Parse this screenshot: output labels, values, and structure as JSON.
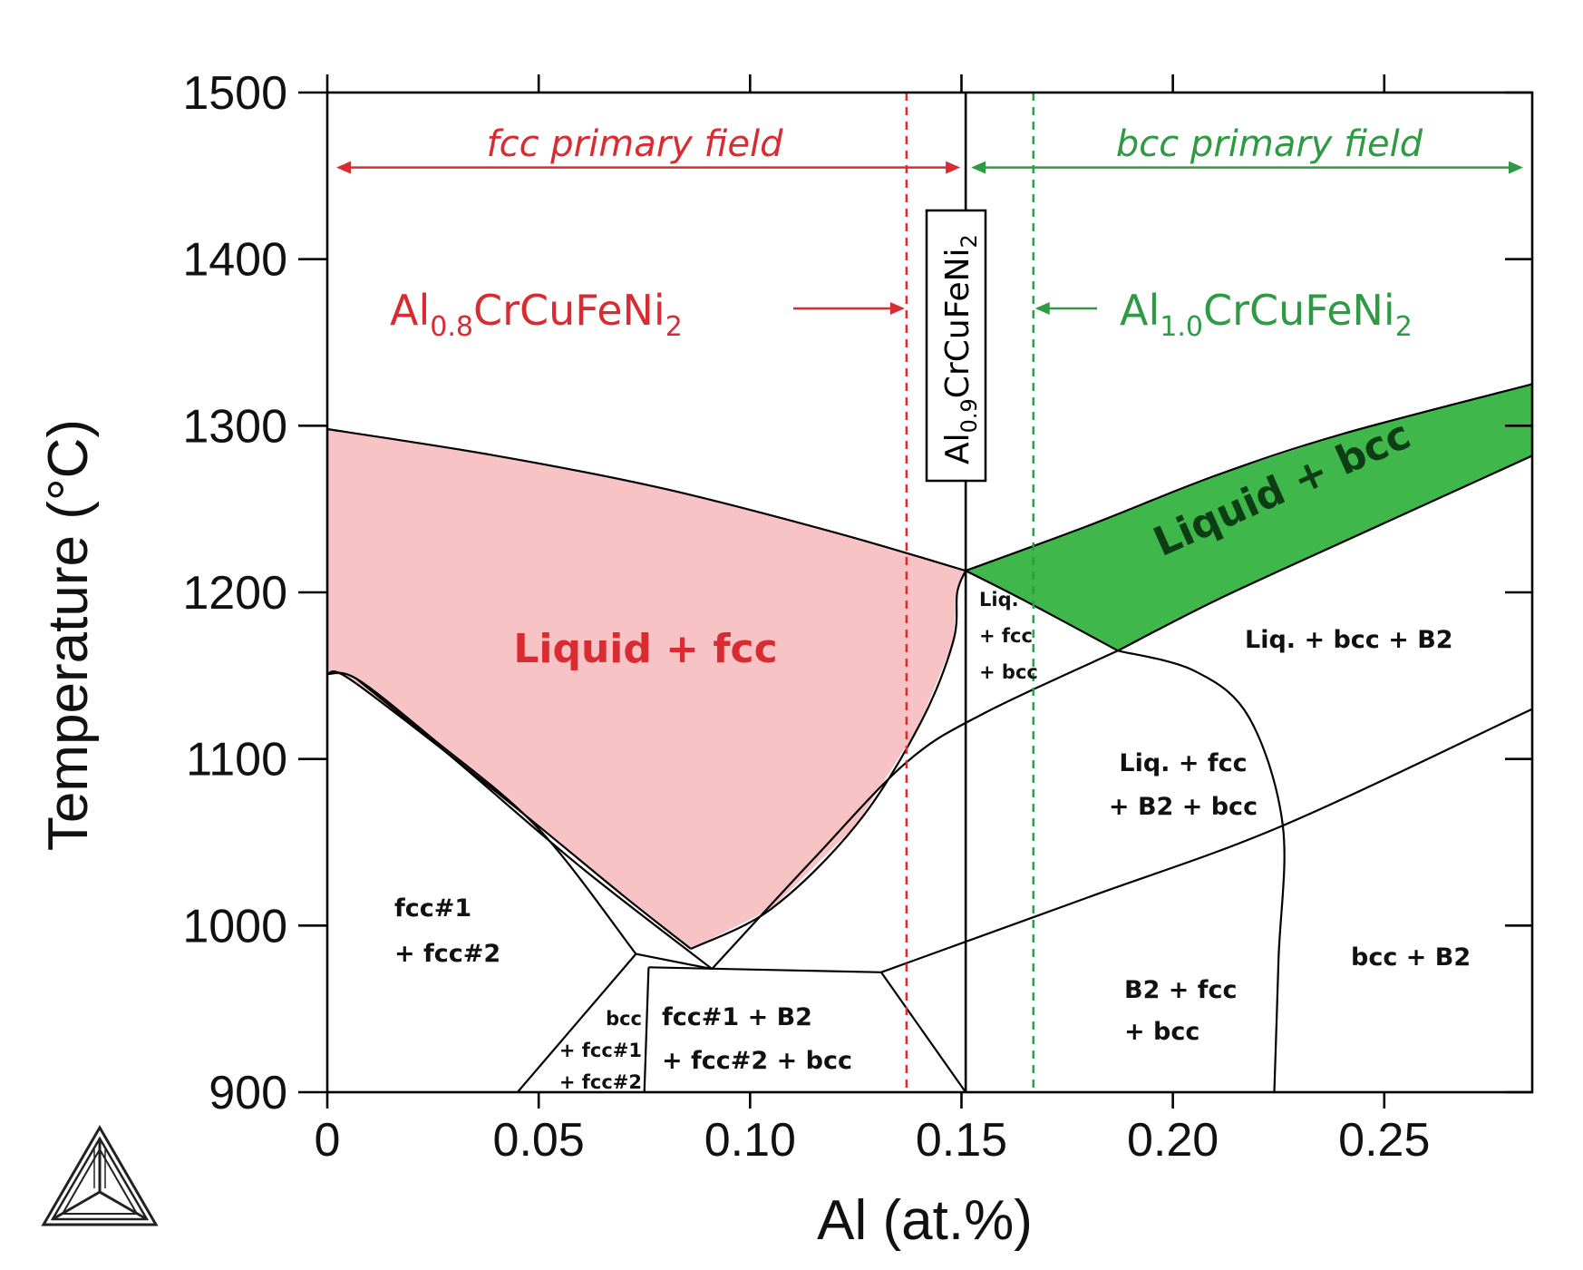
{
  "chart_data": {
    "type": "phase-diagram",
    "title": "",
    "xlabel": "Al (at.%)",
    "ylabel": "Temperature (°C)",
    "xlim": [
      0,
      0.285
    ],
    "ylim": [
      900,
      1500
    ],
    "x_ticks": [
      0,
      0.05,
      0.1,
      0.15,
      0.2,
      0.25
    ],
    "x_tick_labels": [
      "0",
      "0.05",
      "0.10",
      "0.15",
      "0.20",
      "0.25"
    ],
    "y_ticks": [
      900,
      1000,
      1100,
      1200,
      1300,
      1400,
      1500
    ],
    "y_tick_labels": [
      "900",
      "1000",
      "1100",
      "1200",
      "1300",
      "1400",
      "1500"
    ],
    "colors": {
      "liquid_fcc_fill": "#f8c3c5",
      "liquid_bcc_fill": "#3fb74a",
      "fcc_color": "#d92b32",
      "bcc_color": "#2f9a44"
    },
    "primary_fields": [
      {
        "label": "fcc primary field",
        "x_range": [
          0,
          0.151
        ],
        "temperature": 1455,
        "color": "#d92b32"
      },
      {
        "label": "bcc primary field",
        "x_range": [
          0.151,
          0.285
        ],
        "temperature": 1455,
        "color": "#2f9a44"
      }
    ],
    "compositions": [
      {
        "base": "Al",
        "sub1": "0.8",
        "mid": "CrCuFeNi",
        "sub2": "2",
        "x": 0.137,
        "line_style": "dashed",
        "color": "#d92b32"
      },
      {
        "base": "Al",
        "sub1": "0.9",
        "mid": "CrCuFeNi",
        "sub2": "2",
        "x": 0.151,
        "line_style": "solid",
        "color": "#000000"
      },
      {
        "base": "Al",
        "sub1": "1.0",
        "mid": "CrCuFeNi",
        "sub2": "2",
        "x": 0.167,
        "line_style": "dashed",
        "color": "#2f9a44"
      }
    ],
    "regions": [
      {
        "id": "liquid-fcc",
        "lines": [
          "Liquid + fcc"
        ]
      },
      {
        "id": "liquid-bcc",
        "lines": [
          "Liquid + bcc"
        ]
      },
      {
        "id": "liq-fcc-bcc",
        "lines": [
          "Liq.",
          "+ fcc",
          "+ bcc"
        ]
      },
      {
        "id": "liq-bcc-b2",
        "lines": [
          "Liq. + bcc + B2"
        ]
      },
      {
        "id": "liq-fcc-b2-bcc",
        "lines": [
          "Liq. + fcc",
          "+ B2 + bcc"
        ]
      },
      {
        "id": "fcc1-fcc2",
        "lines": [
          "fcc#1",
          "+ fcc#2"
        ]
      },
      {
        "id": "bcc-fcc1-fcc2",
        "lines": [
          "bcc",
          "+ fcc#1",
          "+ fcc#2"
        ]
      },
      {
        "id": "fcc1-b2-fcc2-bcc",
        "lines": [
          "fcc#1 + B2",
          "+ fcc#2 + bcc"
        ]
      },
      {
        "id": "b2-fcc-bcc",
        "lines": [
          "B2 + fcc",
          "+ bcc"
        ]
      },
      {
        "id": "bcc-b2",
        "lines": [
          "bcc + B2"
        ]
      }
    ],
    "boundaries": {
      "liquidus_fcc": [
        [
          0,
          1298
        ],
        [
          0.04,
          1282
        ],
        [
          0.08,
          1262
        ],
        [
          0.12,
          1236
        ],
        [
          0.151,
          1213
        ]
      ],
      "solidus_fcc_left": [
        [
          0,
          1151
        ],
        [
          0.004,
          1150
        ],
        [
          0.02,
          1120
        ],
        [
          0.045,
          1070
        ],
        [
          0.07,
          1018
        ],
        [
          0.086,
          986
        ]
      ],
      "solidus_fcc_right": [
        [
          0.086,
          986
        ],
        [
          0.105,
          1010
        ],
        [
          0.125,
          1060
        ],
        [
          0.14,
          1120
        ],
        [
          0.148,
          1170
        ],
        [
          0.149,
          1200
        ],
        [
          0.151,
          1213
        ]
      ],
      "fcc_miscibility_left": [
        [
          0,
          1151
        ],
        [
          0.007,
          1148
        ],
        [
          0.025,
          1112
        ],
        [
          0.05,
          1058
        ],
        [
          0.073,
          983
        ]
      ],
      "fcc_miscibility_right": [
        [
          0.007,
          1148
        ],
        [
          0.03,
          1100
        ],
        [
          0.06,
          1035
        ],
        [
          0.091,
          974
        ]
      ],
      "liq_fcc_b2_upper": [
        [
          0.091,
          974
        ],
        [
          0.115,
          1040
        ],
        [
          0.137,
          1098
        ],
        [
          0.155,
          1127
        ],
        [
          0.187,
          1165
        ]
      ],
      "liquidus_bcc_upper": [
        [
          0.151,
          1213
        ],
        [
          0.18,
          1240
        ],
        [
          0.21,
          1270
        ],
        [
          0.24,
          1295
        ],
        [
          0.285,
          1325
        ]
      ],
      "liquidus_bcc_lower": [
        [
          0.187,
          1165
        ],
        [
          0.21,
          1195
        ],
        [
          0.24,
          1230
        ],
        [
          0.285,
          1282
        ]
      ],
      "liq_bcc_lower_left": [
        [
          0.151,
          1213
        ],
        [
          0.165,
          1195
        ],
        [
          0.187,
          1165
        ]
      ],
      "b2_solvus": [
        [
          0.187,
          1165
        ],
        [
          0.205,
          1153
        ],
        [
          0.218,
          1125
        ],
        [
          0.226,
          1060
        ],
        [
          0.225,
          980
        ],
        [
          0.224,
          900
        ]
      ],
      "solidus_bcc_b2": [
        [
          0.131,
          972
        ],
        [
          0.18,
          1017
        ],
        [
          0.226,
          1060
        ],
        [
          0.285,
          1130
        ]
      ],
      "three_phase_low_top": [
        [
          0.076,
          975
        ],
        [
          0.131,
          972
        ]
      ],
      "left_small_top": [
        [
          0.073,
          983
        ],
        [
          0.091,
          974
        ]
      ],
      "left_small_left": [
        [
          0.073,
          983
        ],
        [
          0.045,
          900
        ]
      ],
      "left_small_right": [
        [
          0.076,
          975
        ],
        [
          0.075,
          900
        ]
      ],
      "lower_right_edge": [
        [
          0.131,
          972
        ],
        [
          0.151,
          900
        ]
      ]
    }
  },
  "logo": {
    "icon": "thermo-calc-logo-icon"
  }
}
